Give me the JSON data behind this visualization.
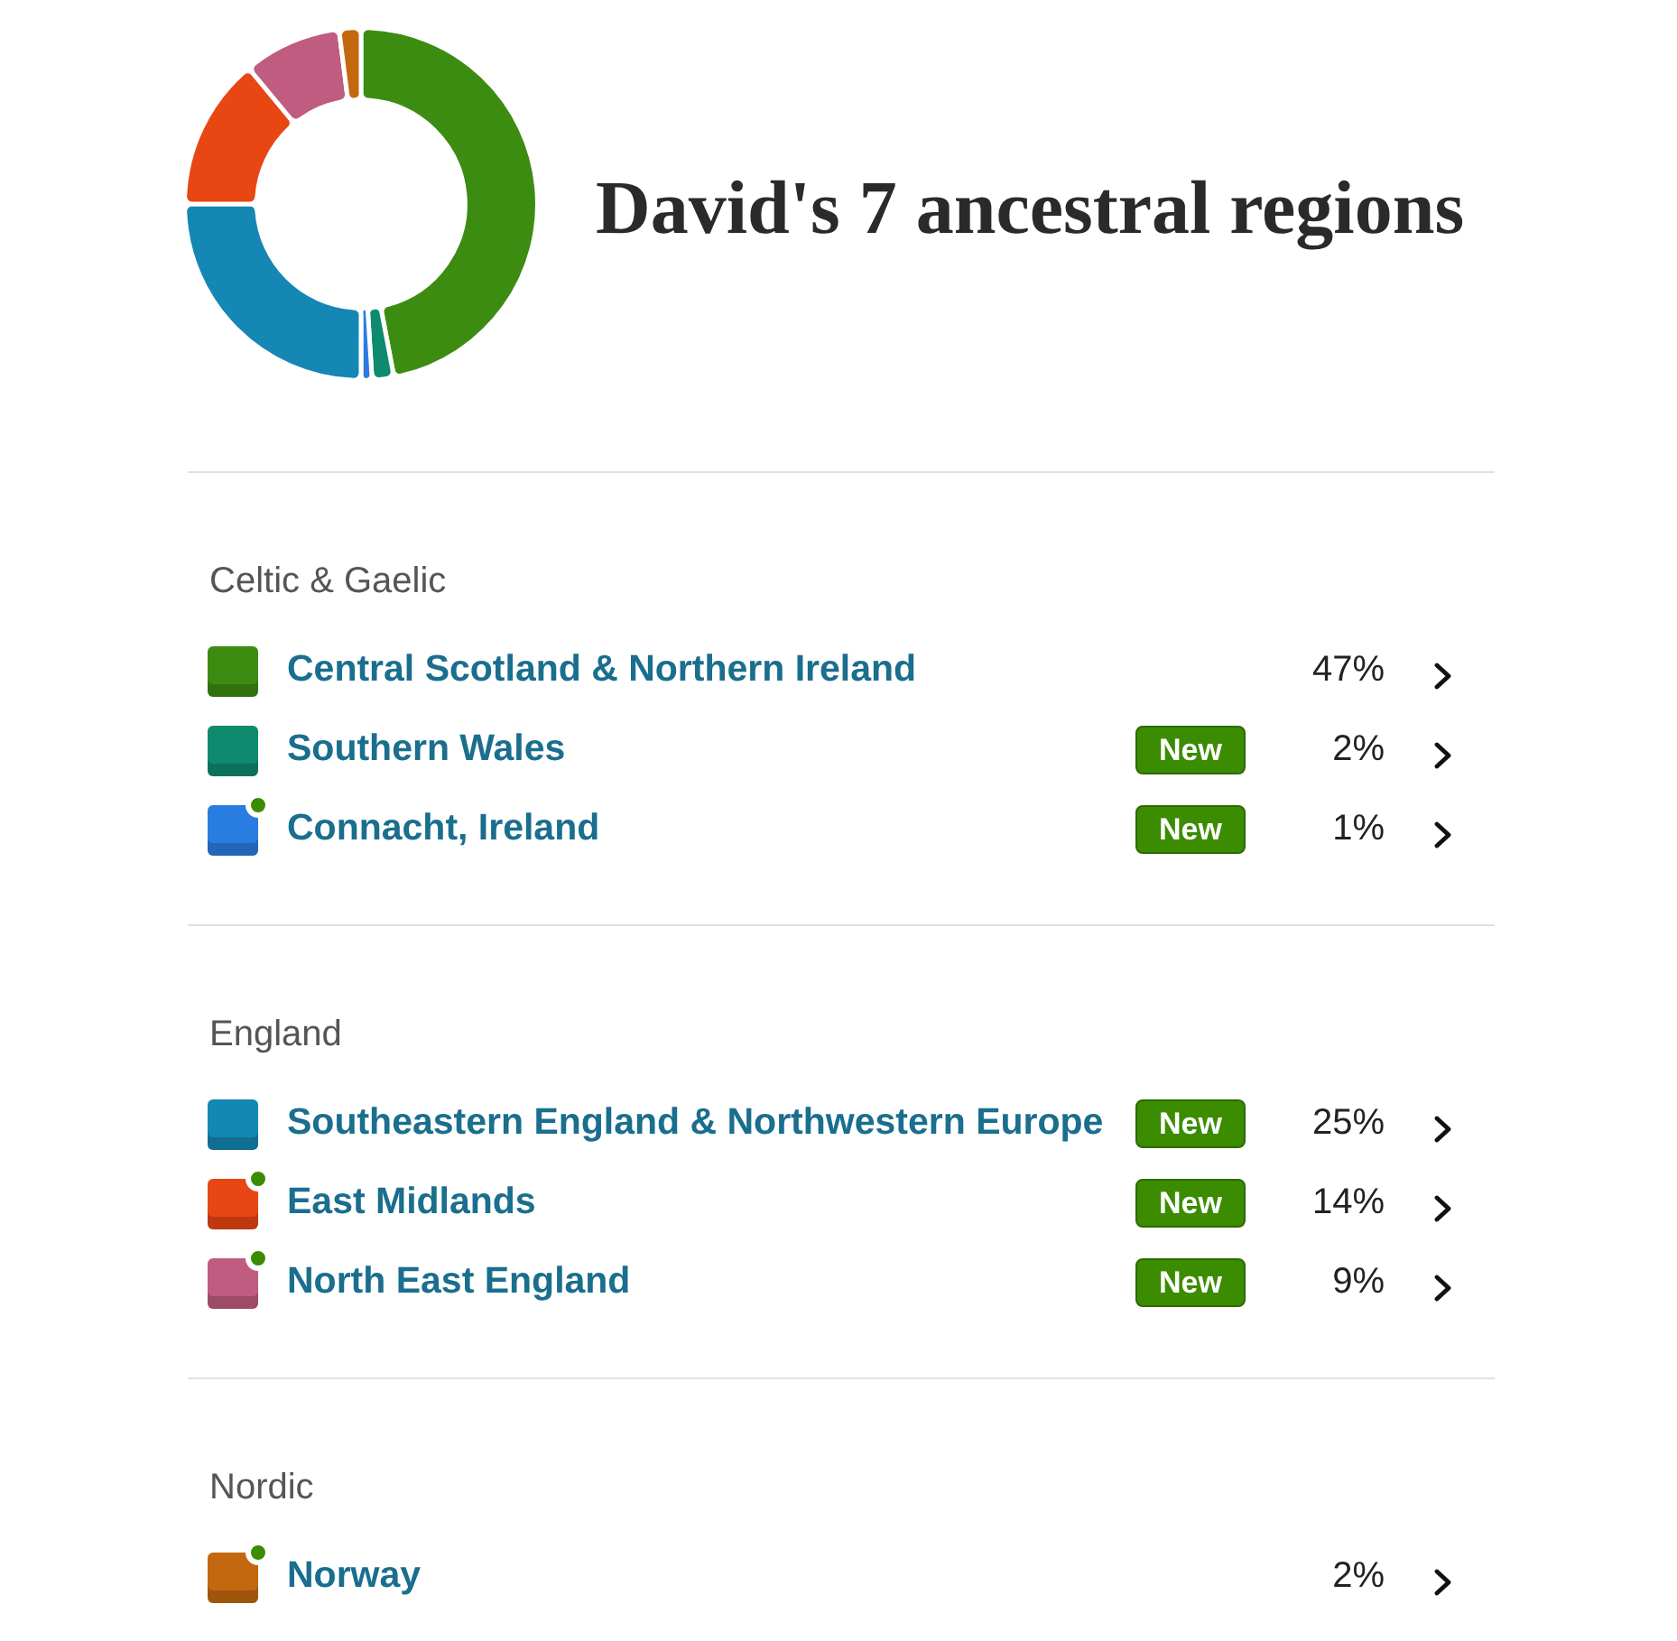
{
  "chart_data": {
    "type": "donut",
    "title": "David's 7 ancestral regions",
    "categories": [
      "Celtic & Gaelic",
      "Central Scotland & Northern Ireland",
      "Southern Wales",
      "Connacht, Ireland",
      "England",
      "Southeastern England & Northwestern Europe",
      "East Midlands",
      "North East England",
      "Nordic",
      "Norway"
    ],
    "values": [
      null,
      47,
      2,
      1,
      null,
      25,
      14,
      9,
      null,
      2
    ],
    "colors": [
      null,
      "#3d8c12",
      "#0e8a6e",
      "#2a7de0",
      null,
      "#1487b4",
      "#e84613",
      "#c05c80",
      null,
      "#c3680f"
    ],
    "value_labels": [
      null,
      "47%",
      "2%",
      "1%",
      null,
      "25%",
      "14%",
      "9%",
      null,
      "2%"
    ],
    "legend": "bottom",
    "annotations": [
      {
        "text": "New",
        "x": "Southern Wales"
      },
      {
        "text": "New",
        "x": "Connacht, Ireland"
      },
      {
        "text": "New",
        "x": "Southeastern England & Northwestern Europe"
      },
      {
        "text": "New",
        "x": "East Midlands"
      },
      {
        "text": "New",
        "x": "North East England"
      }
    ]
  }
}
